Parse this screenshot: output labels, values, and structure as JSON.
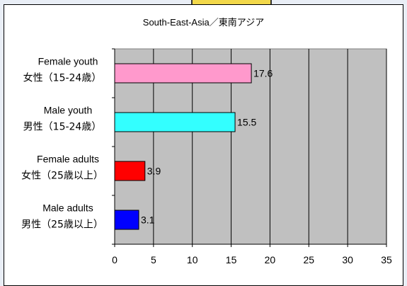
{
  "chart_data": {
    "type": "bar",
    "orientation": "horizontal",
    "title": "South-East-Asia／東南アジア",
    "categories": [
      {
        "en": "Female youth",
        "ja": "女性（15-24歳）",
        "value": 17.6,
        "color": "#ff99cc"
      },
      {
        "en": "Male youth",
        "ja": "男性（15-24歳）",
        "value": 15.5,
        "color": "#33ffff"
      },
      {
        "en": "Female adults",
        "ja": "女性（25歳以上）",
        "value": 3.9,
        "color": "#ff0000"
      },
      {
        "en": "Male adults",
        "ja": "男性（25歳以上）",
        "value": 3.1,
        "color": "#0000ff"
      }
    ],
    "xlim": [
      0,
      35
    ],
    "xticks": [
      "0",
      "5",
      "10",
      "15",
      "20",
      "25",
      "30",
      "35"
    ],
    "plot_background": "#c0c0c0",
    "grid": true,
    "xlabel": "",
    "ylabel": ""
  }
}
